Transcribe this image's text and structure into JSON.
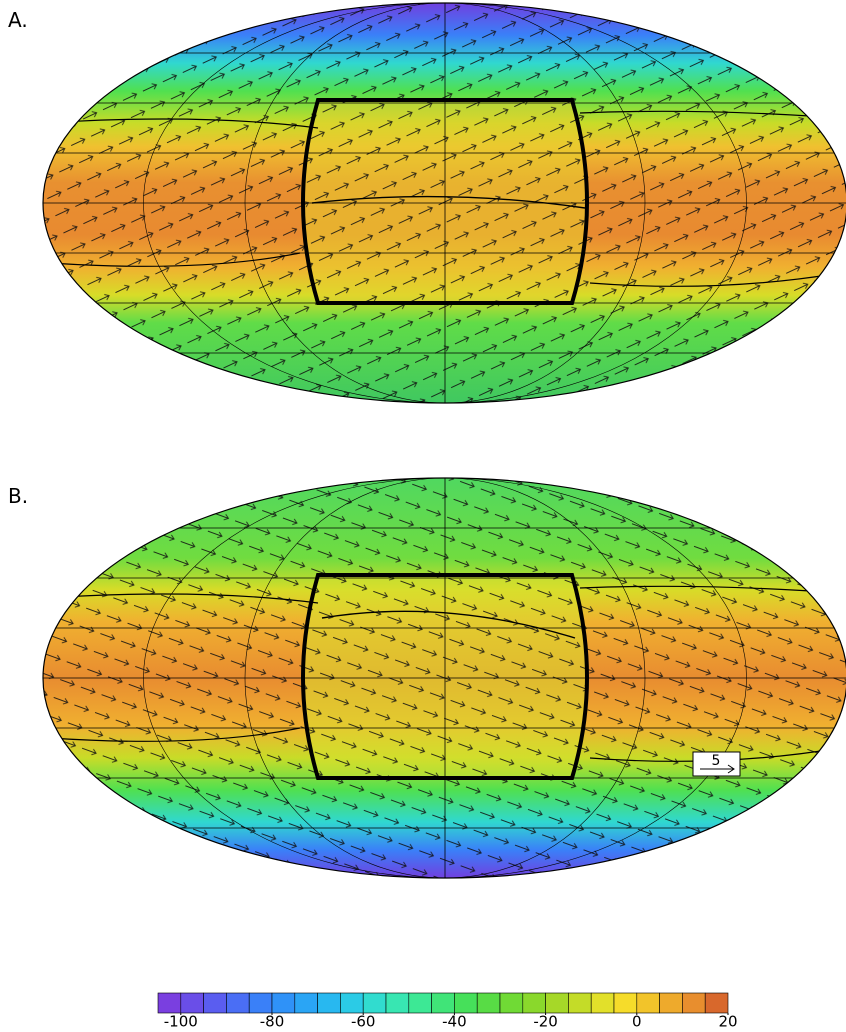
{
  "panels": [
    {
      "label": "A."
    },
    {
      "label": "B."
    }
  ],
  "reference_vector": {
    "label": "5"
  },
  "colorbar": {
    "lim": [
      -105,
      20
    ],
    "ticks": [
      -100,
      -80,
      -60,
      -40,
      -20,
      0,
      20
    ],
    "colors": [
      "#7a3fe0",
      "#6a4ee8",
      "#5a5df0",
      "#4a6ef5",
      "#3a80f8",
      "#2f92f8",
      "#2aa5f5",
      "#28b8f0",
      "#2bcbe6",
      "#31dccf",
      "#38e6b2",
      "#3de895",
      "#40e478",
      "#46e05a",
      "#58dc45",
      "#70da35",
      "#8ad82c",
      "#a6d828",
      "#c4dc28",
      "#e2e02a",
      "#f6dc2a",
      "#f2c42a",
      "#eeaa2c",
      "#e88e2e",
      "#d8682c"
    ]
  }
}
